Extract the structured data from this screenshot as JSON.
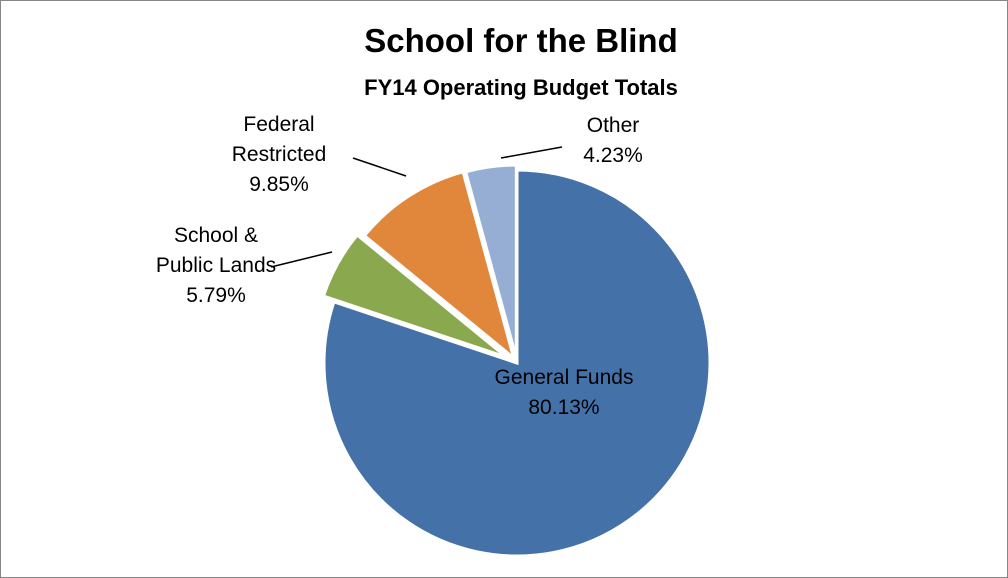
{
  "chart_data": {
    "type": "pie",
    "title": "School for the Blind",
    "subtitle": "FY14 Operating Budget Totals",
    "slices": [
      {
        "label": "General Funds",
        "value": 80.13,
        "value_label": "80.13%",
        "color": "#4472a8",
        "label_lines": [
          "General Funds"
        ]
      },
      {
        "label": "School & Public Lands",
        "value": 5.79,
        "value_label": "5.79%",
        "color": "#8aa84d",
        "label_lines": [
          "School &",
          "Public Lands"
        ]
      },
      {
        "label": "Federal Restricted",
        "value": 9.85,
        "value_label": "9.85%",
        "color": "#e0873c",
        "label_lines": [
          "Federal",
          "Restricted"
        ]
      },
      {
        "label": "Other",
        "value": 4.23,
        "value_label": "4.23%",
        "color": "#97aed4",
        "label_lines": [
          "Other"
        ]
      }
    ],
    "exploded": true,
    "legend": "none"
  }
}
